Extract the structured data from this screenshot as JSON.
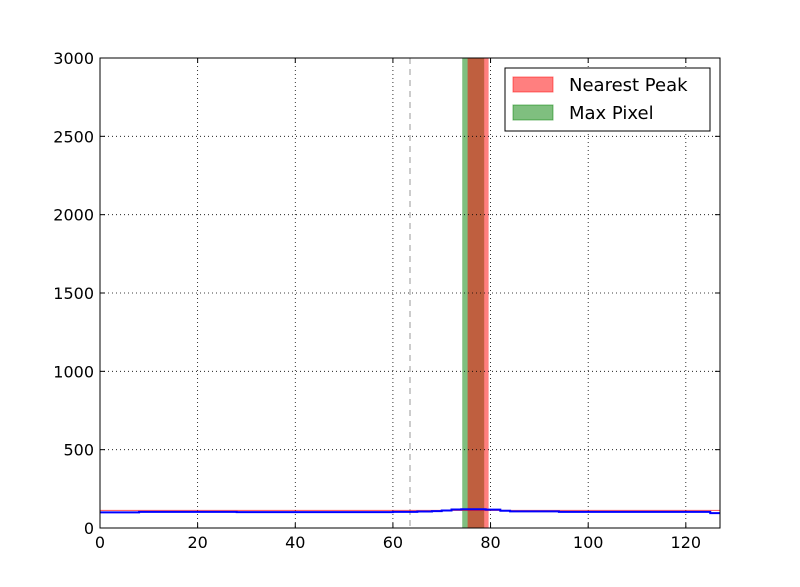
{
  "chart_data": {
    "type": "line",
    "title": "",
    "xlabel": "",
    "ylabel": "",
    "xlim": [
      0,
      127
    ],
    "ylim": [
      0,
      3000
    ],
    "xticks": [
      0,
      20,
      40,
      60,
      80,
      100,
      120
    ],
    "yticks": [
      0,
      500,
      1000,
      1500,
      2000,
      2500,
      3000
    ],
    "grid": true,
    "legend_position": "top-right",
    "legend": [
      {
        "label": "Nearest Peak",
        "color": "#ff0000"
      },
      {
        "label": "Max Pixel",
        "color": "#008000"
      }
    ],
    "bands": [
      {
        "name": "Max Pixel",
        "x_start": 74.2,
        "x_end": 78.7,
        "color": "#008000",
        "alpha": 0.5
      },
      {
        "name": "Nearest Peak",
        "x_start": 75.3,
        "x_end": 79.6,
        "color": "#ff0000",
        "alpha": 0.5
      }
    ],
    "vlines": [
      {
        "x": 63.5,
        "style": "dashed",
        "color": "#aaaaaa"
      }
    ],
    "hlines": [
      {
        "y": 112,
        "color": "#ff0000"
      }
    ],
    "series": [
      {
        "color": "#0000ff",
        "x": [
          0,
          8,
          8,
          28,
          28,
          60,
          60,
          65,
          65,
          68,
          68,
          70,
          70,
          72,
          72,
          74,
          74,
          79,
          79,
          82,
          82,
          84,
          84,
          94,
          94,
          125,
          125,
          127
        ],
        "y": [
          100,
          100,
          103,
          103,
          101,
          101,
          103,
          103,
          105,
          105,
          108,
          108,
          112,
          112,
          118,
          118,
          120,
          120,
          117,
          117,
          110,
          110,
          106,
          106,
          103,
          103,
          95,
          95
        ]
      }
    ]
  }
}
